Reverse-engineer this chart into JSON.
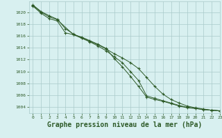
{
  "bg_color": "#d8f0f0",
  "grid_color": "#aacaca",
  "line_color": "#2d5a27",
  "xlabel": "Graphe pression niveau de la mer (hPa)",
  "xlabel_fontsize": 7,
  "xlim": [
    -0.5,
    23
  ],
  "ylim": [
    1003.0,
    1021.8
  ],
  "yticks": [
    1004,
    1006,
    1008,
    1010,
    1012,
    1014,
    1016,
    1018,
    1020
  ],
  "xticks": [
    0,
    1,
    2,
    3,
    4,
    5,
    6,
    7,
    8,
    9,
    10,
    11,
    12,
    13,
    14,
    15,
    16,
    17,
    18,
    19,
    20,
    21,
    22,
    23
  ],
  "series1": {
    "x": [
      0,
      1,
      2,
      3,
      4,
      5,
      6,
      7,
      8,
      9,
      10,
      11,
      12,
      13,
      14,
      15,
      16,
      17,
      18,
      19,
      20,
      21,
      22,
      23
    ],
    "y": [
      1021.2,
      1020.1,
      1019.4,
      1018.8,
      1017.2,
      1016.3,
      1015.7,
      1015.1,
      1014.5,
      1013.8,
      1013.0,
      1012.3,
      1011.5,
      1010.5,
      1009.0,
      1007.5,
      1006.2,
      1005.3,
      1004.7,
      1004.2,
      1003.9,
      1003.7,
      1003.5,
      1003.4
    ]
  },
  "series2": {
    "x": [
      0,
      1,
      2,
      3,
      4,
      5,
      6,
      7,
      8,
      9,
      10,
      11,
      12,
      13,
      14,
      15,
      16,
      17,
      18,
      19,
      20,
      21,
      22,
      23
    ],
    "y": [
      1021.0,
      1019.8,
      1018.9,
      1018.5,
      1016.5,
      1016.2,
      1015.6,
      1015.0,
      1014.3,
      1013.5,
      1012.5,
      1011.5,
      1010.0,
      1008.5,
      1005.9,
      1005.5,
      1005.1,
      1004.7,
      1004.3,
      1004.0,
      1003.8,
      1003.6,
      1003.5,
      1003.4
    ]
  },
  "series3": {
    "x": [
      0,
      1,
      2,
      3,
      5,
      6,
      7,
      8,
      9,
      10,
      11,
      12,
      13,
      14,
      15,
      16,
      17,
      18,
      19,
      20,
      21,
      22,
      23
    ],
    "y": [
      1021.1,
      1020.0,
      1019.2,
      1018.7,
      1016.2,
      1015.8,
      1015.2,
      1014.6,
      1013.9,
      1012.2,
      1010.8,
      1009.2,
      1007.5,
      1005.7,
      1005.3,
      1005.0,
      1004.6,
      1004.2,
      1003.9,
      1003.8,
      1003.6,
      1003.5,
      1003.4
    ]
  }
}
